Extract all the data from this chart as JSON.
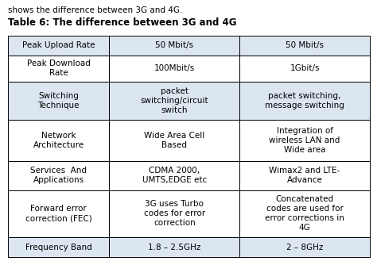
{
  "title_line1": "shows the difference between 3G and 4G.",
  "title_line2": "Table 6: The difference between 3G and 4G",
  "rows": [
    [
      "Peak Upload Rate",
      "50 Mbit/s",
      "50 Mbit/s"
    ],
    [
      "Peak Download\nRate",
      "100Mbit/s",
      "1Gbit/s"
    ],
    [
      "Switching\nTechnique",
      "packet\nswitching/circuit\nswitch",
      "packet switching,\nmessage switching"
    ],
    [
      "Network\nArchitecture",
      "Wide Area Cell\nBased",
      "Integration of\nwireless LAN and\nWide area"
    ],
    [
      "Services  And\nApplications",
      "CDMA 2000,\nUMTS,EDGE etc",
      "Wimax2 and LTE-\nAdvance"
    ],
    [
      "Forward error\ncorrection (FEC)",
      "3G uses Turbo\ncodes for error\ncorrection",
      "Concatenated\ncodes are used for\nerror corrections in\n4G"
    ],
    [
      "Frequency Band",
      "1.8 – 2.5GHz",
      "2 – 8GHz"
    ]
  ],
  "row_colors": [
    "#dce6f1",
    "#ffffff",
    "#dce6f1",
    "#ffffff",
    "#ffffff",
    "#ffffff",
    "#dce6f1"
  ],
  "col_weights": [
    0.28,
    0.36,
    0.36
  ],
  "row_heights_pts": [
    28,
    38,
    55,
    58,
    42,
    68,
    28
  ],
  "border_color": "#000000",
  "text_color": "#000000",
  "font_size": 7.5,
  "title1_font_size": 7.5,
  "title2_font_size": 8.5
}
